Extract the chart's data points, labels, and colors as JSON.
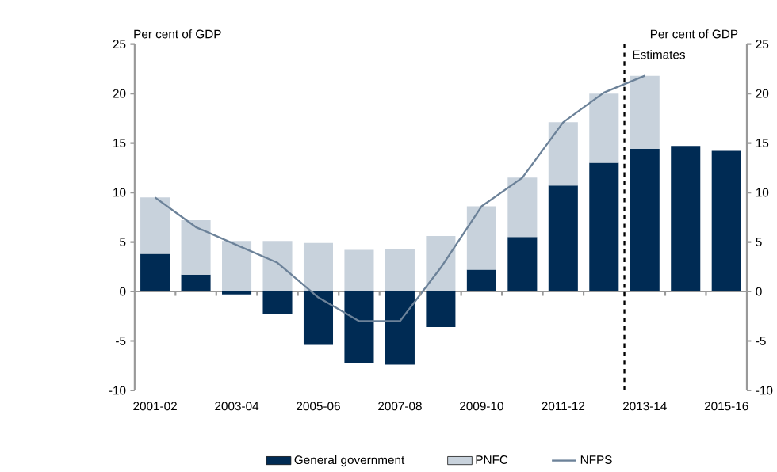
{
  "chart_data": {
    "type": "bar",
    "stacked": true,
    "categories": [
      "2001-02",
      null,
      "2003-04",
      null,
      "2005-06",
      null,
      "2007-08",
      null,
      "2009-10",
      null,
      "2011-12",
      null,
      "2013-14",
      null,
      "2015-16"
    ],
    "series": [
      {
        "name": "General government",
        "color": "#002b54",
        "values": [
          3.8,
          1.7,
          -0.3,
          -2.3,
          -5.4,
          -7.2,
          -7.4,
          -3.6,
          2.2,
          5.5,
          10.7,
          13.0,
          14.4,
          14.7,
          14.2
        ]
      },
      {
        "name": "PNFC",
        "color": "#c8d2dc",
        "values": [
          5.7,
          5.5,
          5.1,
          5.1,
          4.9,
          4.2,
          4.3,
          5.6,
          6.4,
          6.0,
          6.4,
          7.0,
          7.4,
          null,
          null
        ]
      },
      {
        "name": "NFPS",
        "type": "line",
        "color": "#6c8299",
        "values": [
          9.5,
          6.5,
          4.7,
          2.9,
          -0.6,
          -3.0,
          -3.0,
          2.4,
          8.6,
          11.5,
          17.1,
          20.1,
          21.8,
          null,
          null
        ]
      }
    ],
    "ylabel": "Per cent of GDP",
    "y2label": "Per cent of GDP",
    "ylim": [
      -10,
      25
    ],
    "yticks": [
      -10,
      -5,
      0,
      5,
      10,
      15,
      20,
      25
    ],
    "y2lim": [
      -10,
      25
    ],
    "y2ticks": [
      -10,
      -5,
      0,
      5,
      10,
      15,
      20,
      25
    ],
    "ref_lines": [
      {
        "axis": "x",
        "value": "2013-14",
        "label": "Estimates",
        "line_style": "dashed",
        "color": "#000000"
      }
    ],
    "legend": "bottom",
    "grid": false,
    "marker": "none"
  }
}
